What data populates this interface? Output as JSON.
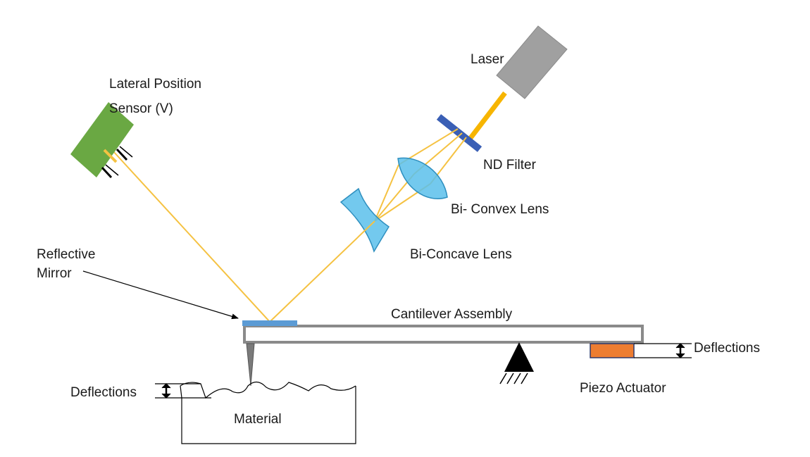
{
  "labels": {
    "laser": "Laser",
    "lateral_sensor_line1": "Lateral Position",
    "lateral_sensor_line2": "Sensor (V)",
    "nd_filter": "ND Filter",
    "biconvex_lens": "Bi- Convex Lens",
    "biconcave_lens": "Bi-Concave Lens",
    "reflective_mirror_line1": "Reflective",
    "reflective_mirror_line2": "Mirror",
    "cantilever_assembly": "Cantilever Assembly",
    "deflections_left": "Deflections",
    "deflections_right": "Deflections",
    "piezo_actuator": "Piezo Actuator",
    "material": "Material"
  },
  "colors": {
    "laser_body": "#a0a0a0",
    "beam": "#f5c242",
    "beam_bright": "#f7b500",
    "sensor": "#6aa843",
    "nd_filter": "#3a5fb5",
    "lens": "#5bc0eb",
    "mirror": "#5b9bd5",
    "piezo": "#ed7d31",
    "cantilever_stroke": "#8a8a8a"
  }
}
